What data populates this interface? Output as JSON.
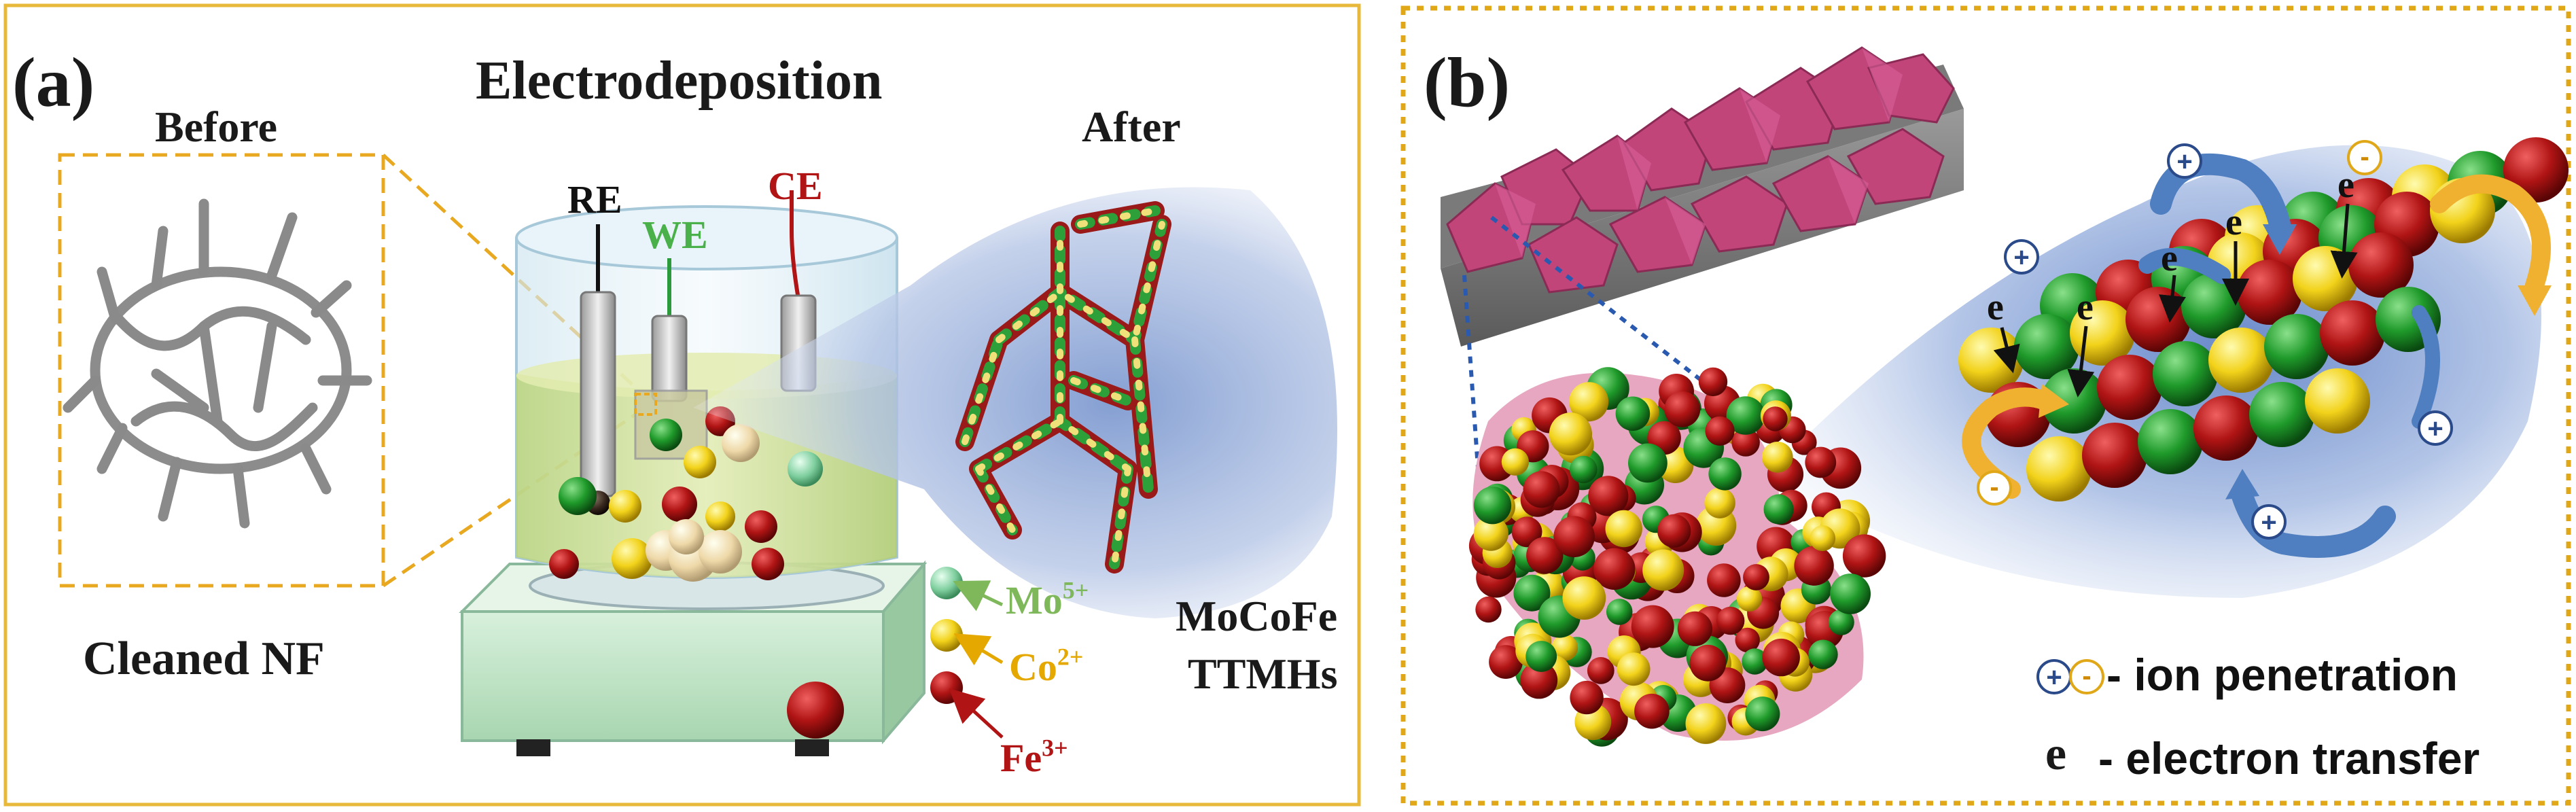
{
  "panel_a": {
    "tag": "(a)",
    "title": "Electrodeposition",
    "before_label": "Before",
    "after_label": "After",
    "cleaned_label": "Cleaned NF",
    "electrodes": {
      "re": "RE",
      "we": "WE",
      "ce": "CE"
    },
    "ions": [
      {
        "symbol": "Mo",
        "charge": "5+",
        "color": "#7fcf9f",
        "text_color": "#7fb85a"
      },
      {
        "symbol": "Co",
        "charge": "2+",
        "color": "#e8c400",
        "text_color": "#e5a800"
      },
      {
        "symbol": "Fe",
        "charge": "3+",
        "color": "#b01414",
        "text_color": "#b01414"
      }
    ],
    "product_line1": "MoCoFe",
    "product_line2": "TTMHs"
  },
  "panel_b": {
    "tag": "(b)",
    "electron": "e",
    "plus": "+",
    "minus": "-",
    "legend_ion": "- ion penetration",
    "legend_electron_symbol": "e",
    "legend_electron": "- electron transfer"
  },
  "colors": {
    "frame_a": "#e8b83a",
    "frame_b": "#e0a818",
    "sphere_red": "#b01414",
    "sphere_green": "#1f9a2a",
    "sphere_yellow": "#f2d21a",
    "crystal_pink": "#c2457a",
    "arrow_blue": "#4f7fc0",
    "arrow_orange": "#f0b030"
  }
}
